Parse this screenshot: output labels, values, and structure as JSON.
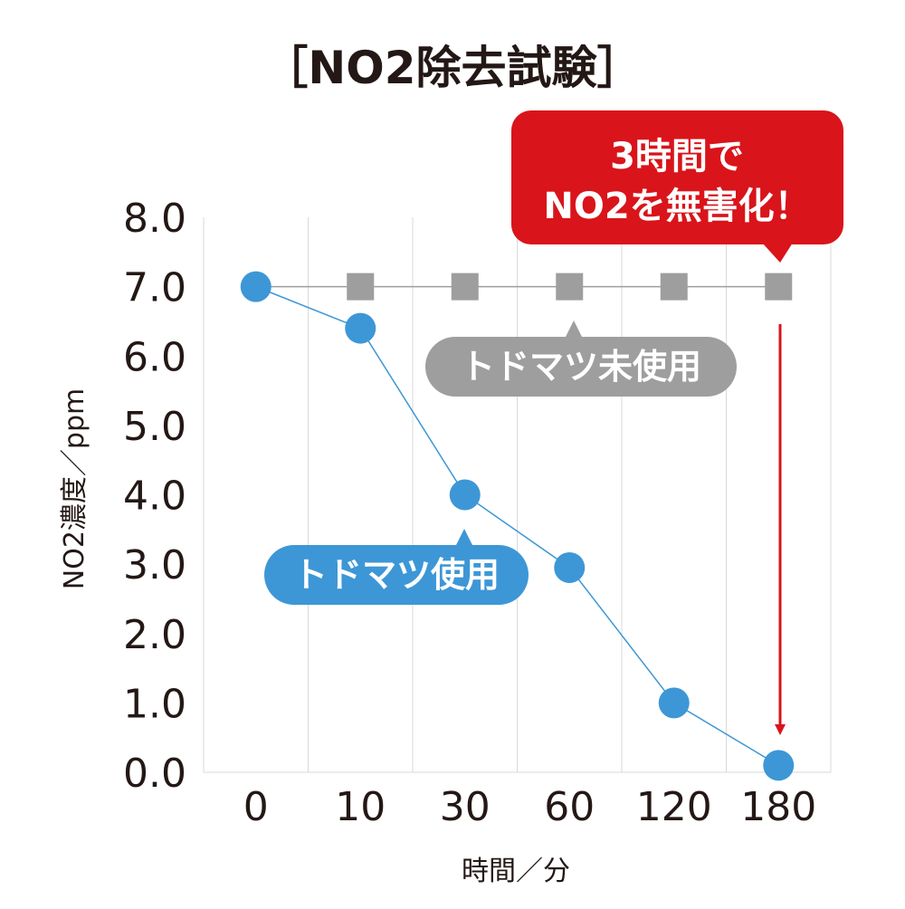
{
  "colors": {
    "used": "#3d97d6",
    "unused": "#9e9e9e",
    "accent": "#d9141b",
    "grid": "#d9d9d9",
    "text": "#231815"
  },
  "chart_data": {
    "type": "line",
    "title": "［NO2除去試験］",
    "xlabel": "時間／分",
    "ylabel": "NO2濃度／ppm",
    "categories": [
      "0",
      "10",
      "30",
      "60",
      "120",
      "180"
    ],
    "ylim": [
      0,
      8
    ],
    "yticks": [
      "0.0",
      "1.0",
      "2.0",
      "3.0",
      "4.0",
      "5.0",
      "6.0",
      "7.0",
      "8.0"
    ],
    "grid": "vertical",
    "series": [
      {
        "name": "トドマツ使用",
        "marker": "circle",
        "color": "#3d97d6",
        "values": [
          7.0,
          6.4,
          4.0,
          2.95,
          1.0,
          0.1
        ]
      },
      {
        "name": "トドマツ未使用",
        "marker": "square",
        "color": "#9e9e9e",
        "values": [
          7.0,
          7.0,
          7.0,
          7.0,
          7.0,
          7.0
        ]
      }
    ],
    "annotations": [
      {
        "line1": "3時間で",
        "line2": "NO2を無害化！"
      }
    ]
  }
}
